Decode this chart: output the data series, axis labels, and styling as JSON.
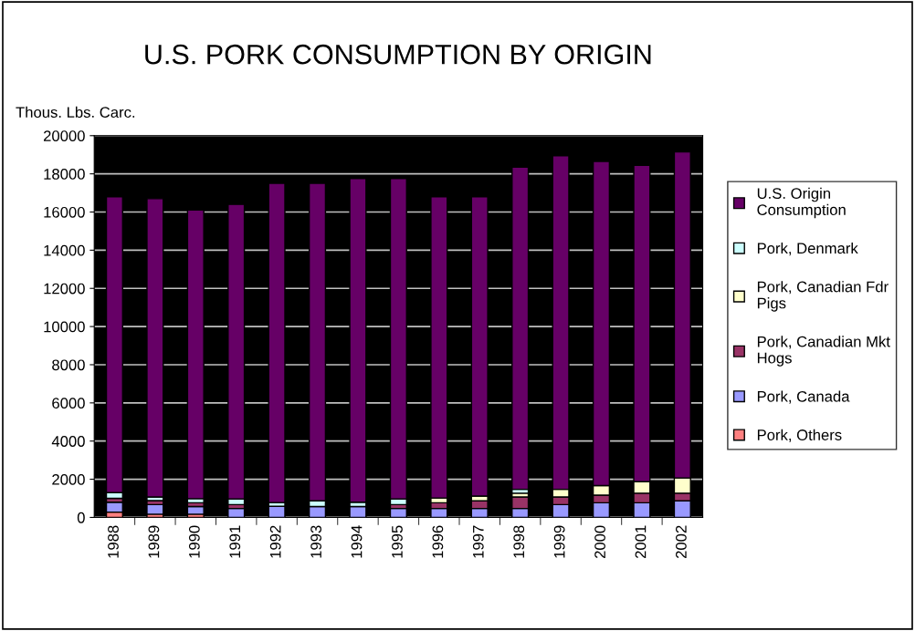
{
  "chart_data": {
    "type": "bar",
    "stacked": true,
    "title": "U.S. PORK CONSUMPTION BY ORIGIN",
    "ylabel": "Thous. Lbs. Carc.",
    "categories": [
      "1988",
      "1989",
      "1990",
      "1991",
      "1992",
      "1993",
      "1994",
      "1995",
      "1996",
      "1997",
      "1998",
      "1999",
      "2000",
      "2001",
      "2002"
    ],
    "series": [
      {
        "name": "Pork, Others",
        "color": "#ff8080",
        "values": [
          280,
          170,
          170,
          null,
          null,
          null,
          null,
          null,
          null,
          null,
          null,
          null,
          null,
          null,
          null
        ]
      },
      {
        "name": "Pork, Canada",
        "color": "#9999ff",
        "values": [
          520,
          500,
          400,
          470,
          580,
          570,
          570,
          470,
          470,
          470,
          470,
          670,
          770,
          770,
          870
        ]
      },
      {
        "name": "Pork, Canadian Mkt Hogs",
        "color": "#993366",
        "values": [
          200,
          210,
          200,
          200,
          null,
          null,
          null,
          200,
          300,
          400,
          600,
          400,
          400,
          500,
          400
        ]
      },
      {
        "name": "Pork, Canadian Fdr Pigs",
        "color": "#ffffcc",
        "values": [
          null,
          null,
          null,
          null,
          null,
          null,
          null,
          null,
          250,
          250,
          200,
          400,
          500,
          600,
          800
        ]
      },
      {
        "name": "Pork, Denmark",
        "color": "#ccffff",
        "values": [
          300,
          190,
          210,
          300,
          200,
          300,
          230,
          300,
          null,
          null,
          200,
          null,
          null,
          null,
          null
        ]
      },
      {
        "name": "U.S. Origin Consumption",
        "color": "#660066",
        "values": [
          15500,
          15630,
          15130,
          15430,
          16720,
          16630,
          16950,
          16780,
          15780,
          15680,
          16880,
          17480,
          16980,
          16580,
          17080
        ]
      }
    ],
    "ylim": [
      0,
      20000
    ],
    "yticks": [
      0,
      2000,
      4000,
      6000,
      8000,
      10000,
      12000,
      14000,
      16000,
      18000,
      20000
    ],
    "grid": "y",
    "legend": "right"
  }
}
